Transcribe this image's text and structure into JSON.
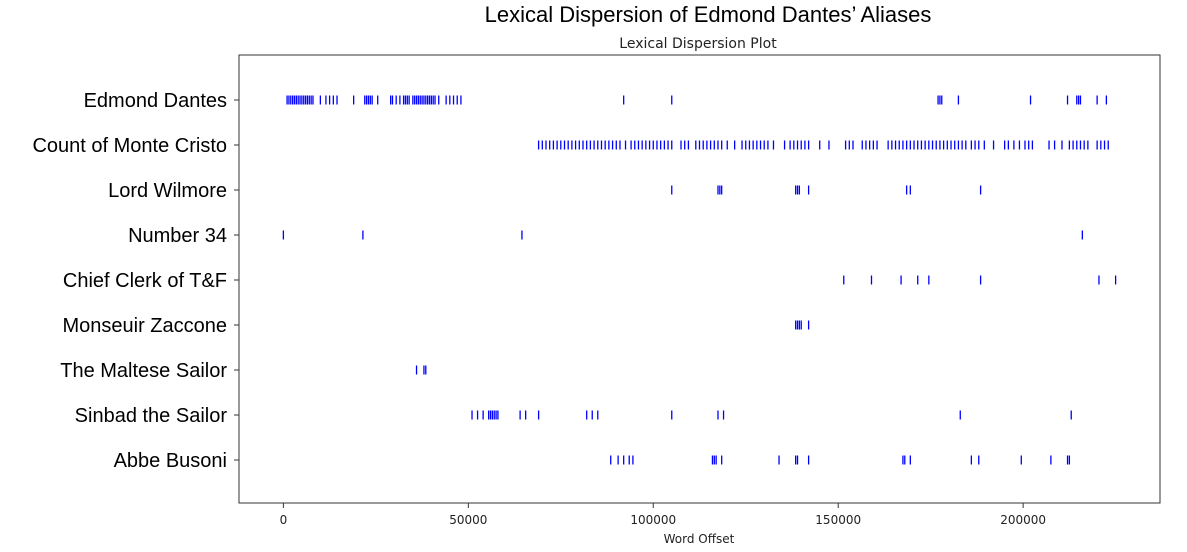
{
  "chart_data": {
    "type": "scatter",
    "title": "Lexical Dispersion of Edmond Dantes’ Aliases",
    "subtitle": "Lexical Dispersion Plot",
    "xlabel": "Word Offset",
    "ylabel": "",
    "xlim": [
      -12000,
      237000
    ],
    "xticks": [
      0,
      50000,
      100000,
      150000,
      200000
    ],
    "marker": "|",
    "color": "#0000ff",
    "grid": false,
    "categories": [
      "Edmond Dantes",
      "Count of Monte Cristo",
      "Lord Wilmore",
      "Number 34",
      "Chief Clerk of T&F",
      "Monseuir Zaccone",
      "The Maltese Sailor",
      "Sinbad the Sailor",
      "Abbe Busoni"
    ],
    "series": [
      {
        "name": "Edmond Dantes",
        "x": [
          1000,
          1500,
          2000,
          2500,
          3000,
          3500,
          4000,
          4500,
          5000,
          5500,
          6000,
          6500,
          7000,
          7500,
          8000,
          10000,
          11500,
          12500,
          13500,
          14500,
          19000,
          22000,
          22500,
          23000,
          23500,
          24000,
          25500,
          29000,
          29500,
          30500,
          31500,
          32500,
          33000,
          33500,
          34000,
          35000,
          35500,
          36000,
          36500,
          37000,
          37500,
          38000,
          38500,
          39000,
          39500,
          40000,
          40500,
          41000,
          42000,
          44000,
          45000,
          46000,
          47000,
          48000,
          92000,
          105000,
          177000,
          177500,
          178000,
          182500,
          202000,
          212000,
          214500,
          215000,
          215500,
          220000,
          222500
        ]
      },
      {
        "name": "Count of Monte Cristo",
        "x": [
          69000,
          70000,
          71000,
          72000,
          73000,
          74000,
          75000,
          76000,
          77000,
          78000,
          79000,
          80000,
          81000,
          82000,
          83000,
          84000,
          85000,
          86000,
          87000,
          88000,
          89000,
          90000,
          91000,
          92500,
          94000,
          95000,
          96000,
          97000,
          98000,
          99000,
          100000,
          101000,
          102000,
          103000,
          104000,
          105000,
          107500,
          108500,
          109500,
          111500,
          112500,
          113500,
          114500,
          115500,
          116500,
          117500,
          118500,
          120000,
          122000,
          124000,
          125000,
          126000,
          127000,
          128000,
          129000,
          130000,
          131000,
          132500,
          135500,
          137000,
          138000,
          139000,
          140000,
          141000,
          142000,
          145000,
          147500,
          152000,
          153000,
          154000,
          156500,
          157500,
          158500,
          159500,
          160500,
          163500,
          164500,
          165500,
          166500,
          167500,
          168500,
          169500,
          170500,
          171500,
          172500,
          173500,
          174500,
          175500,
          176500,
          177500,
          178500,
          179500,
          180500,
          181500,
          182500,
          183500,
          184500,
          186000,
          187000,
          188000,
          189500,
          192000,
          195000,
          196000,
          197500,
          199000,
          200500,
          201500,
          202500,
          207000,
          208500,
          210500,
          212500,
          213500,
          214500,
          215500,
          216500,
          217500,
          220000,
          221000,
          222000,
          223000
        ]
      },
      {
        "name": "Lord Wilmore",
        "x": [
          105000,
          117500,
          118000,
          118500,
          138500,
          139000,
          139500,
          142000,
          168500,
          169500,
          188500
        ]
      },
      {
        "name": "Number 34",
        "x": [
          0,
          21500,
          64500,
          216000
        ]
      },
      {
        "name": "Chief Clerk of T&F",
        "x": [
          151500,
          159000,
          167000,
          171500,
          174500,
          188500,
          220500,
          225000
        ]
      },
      {
        "name": "Monseuir Zaccone",
        "x": [
          138500,
          139000,
          139500,
          140000,
          142000
        ]
      },
      {
        "name": "The Maltese Sailor",
        "x": [
          36000,
          38000,
          38500
        ]
      },
      {
        "name": "Sinbad the Sailor",
        "x": [
          51000,
          52500,
          54000,
          55500,
          56000,
          56500,
          57000,
          57500,
          58000,
          64000,
          65500,
          69000,
          82000,
          83500,
          85000,
          105000,
          117500,
          119000,
          183000,
          213000
        ]
      },
      {
        "name": "Abbe Busoni",
        "x": [
          88500,
          90500,
          92000,
          93500,
          94500,
          116000,
          116500,
          117000,
          118500,
          134000,
          138500,
          139000,
          142000,
          167500,
          168000,
          169500,
          186000,
          188000,
          199500,
          207500,
          212000,
          212500
        ]
      }
    ]
  }
}
